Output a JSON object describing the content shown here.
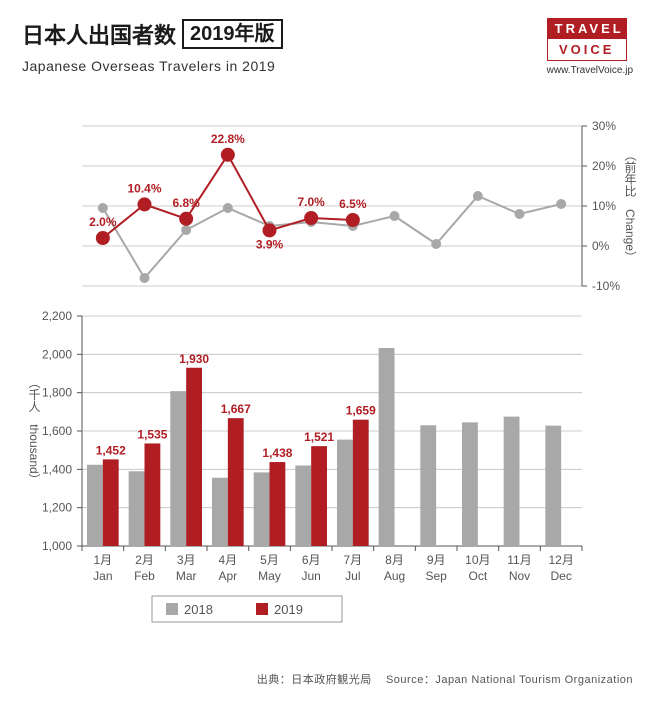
{
  "header": {
    "title_jp": "日本人出国者数",
    "year_badge": "2019年版",
    "subtitle_en": "Japanese Overseas Travelers in 2019",
    "logo_top": "TRAVEL",
    "logo_bottom": "VOICE",
    "url": "www.TravelVoice.jp"
  },
  "colors": {
    "red": "#b01e24",
    "gray": "#a8a8a8",
    "text": "#333333",
    "grid": "#bfbfbf",
    "background": "#ffffff"
  },
  "months": {
    "jp": [
      "1月",
      "2月",
      "3月",
      "4月",
      "5月",
      "6月",
      "7月",
      "8月",
      "9月",
      "10月",
      "11月",
      "12月"
    ],
    "en": [
      "Jan",
      "Feb",
      "Mar",
      "Apr",
      "May",
      "Jun",
      "Jul",
      "Aug",
      "Sep",
      "Oct",
      "Nov",
      "Dec"
    ]
  },
  "line_chart": {
    "y_axis_label": "（前年比　Change）",
    "ylim": [
      -10,
      30
    ],
    "ytick_step": 10,
    "ytick_labels": [
      "-10%",
      "0%",
      "10%",
      "20%",
      "30%"
    ],
    "series_2019": {
      "color": "#b01e24",
      "values": [
        2.0,
        10.4,
        6.8,
        22.8,
        3.9,
        7.0,
        6.5
      ],
      "labels": [
        "2.0%",
        "10.4%",
        "6.8%",
        "22.8%",
        "3.9%",
        "7.0%",
        "6.5%"
      ],
      "marker_size": 7,
      "line_width": 2
    },
    "series_2018": {
      "color": "#a8a8a8",
      "values": [
        9.5,
        -8.0,
        4.0,
        9.5,
        5.0,
        6.0,
        5.0,
        7.5,
        0.5,
        12.5,
        8.0,
        10.5
      ],
      "marker_size": 5,
      "line_width": 2
    }
  },
  "bar_chart": {
    "y_axis_label": "（千人　thousand）",
    "ylim": [
      1000,
      2200
    ],
    "ytick_step": 200,
    "ytick_labels": [
      "1,000",
      "1,200",
      "1,400",
      "1,600",
      "1,800",
      "2,000",
      "2,200"
    ],
    "series_2018": {
      "color": "#a8a8a8",
      "values": [
        1424,
        1390,
        1808,
        1356,
        1384,
        1420,
        1555,
        2033,
        1630,
        1645,
        1675,
        1628
      ]
    },
    "series_2019": {
      "color": "#b01e24",
      "values": [
        1452,
        1535,
        1930,
        1667,
        1438,
        1521,
        1659
      ],
      "labels": [
        "1,452",
        "1,535",
        "1,930",
        "1,667",
        "1,438",
        "1,521",
        "1,659"
      ]
    },
    "bar_width": 0.38
  },
  "legend": {
    "items": [
      {
        "label": "2018",
        "color": "#a8a8a8"
      },
      {
        "label": "2019",
        "color": "#b01e24"
      }
    ]
  },
  "source": {
    "jp": "出典：日本政府観光局",
    "en": "Source：Japan National Tourism Organization"
  }
}
